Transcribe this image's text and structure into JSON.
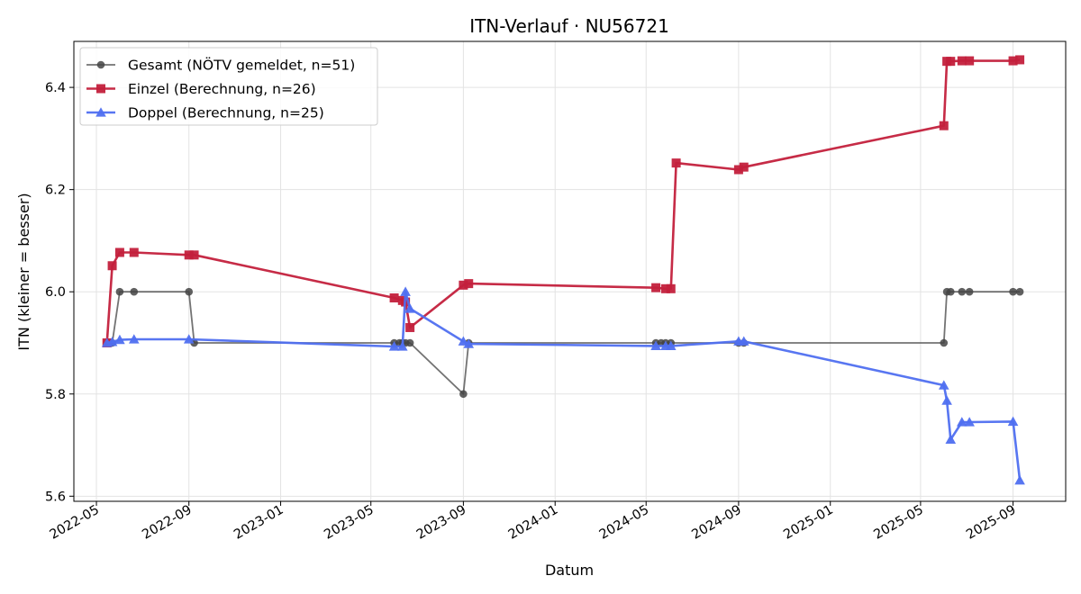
{
  "chart_data": {
    "type": "line",
    "title": "ITN-Verlauf · NU56721",
    "xlabel": "Datum",
    "ylabel": "ITN  (kleiner = besser)",
    "x_axis": "date",
    "xlim": [
      "2022-04-01",
      "2025-11-10"
    ],
    "ylim": [
      5.59,
      6.49
    ],
    "x_ticks": [
      "2022-05",
      "2022-09",
      "2023-01",
      "2023-05",
      "2023-09",
      "2024-01",
      "2024-05",
      "2024-09",
      "2025-01",
      "2025-05",
      "2025-09"
    ],
    "y_ticks": [
      "5.6",
      "5.8",
      "6.0",
      "6.2",
      "6.4"
    ],
    "grid": true,
    "legend_position": "top-left",
    "series": [
      {
        "name": "Gesamt (NÖTV gemeldet, n=51)",
        "color": "#444444",
        "marker": "circle",
        "points": [
          [
            "2022-05-15",
            5.9
          ],
          [
            "2022-05-22",
            5.9
          ],
          [
            "2022-06-01",
            6.0
          ],
          [
            "2022-06-20",
            6.0
          ],
          [
            "2022-09-01",
            6.0
          ],
          [
            "2022-09-08",
            5.9
          ],
          [
            "2023-06-01",
            5.9
          ],
          [
            "2023-06-08",
            5.9
          ],
          [
            "2023-06-12",
            5.9
          ],
          [
            "2023-06-16",
            5.9
          ],
          [
            "2023-06-22",
            5.9
          ],
          [
            "2023-09-01",
            5.8
          ],
          [
            "2023-09-08",
            5.9
          ],
          [
            "2024-05-14",
            5.9
          ],
          [
            "2024-05-21",
            5.9
          ],
          [
            "2024-05-27",
            5.9
          ],
          [
            "2024-06-03",
            5.9
          ],
          [
            "2024-09-01",
            5.9
          ],
          [
            "2024-09-08",
            5.9
          ],
          [
            "2025-06-01",
            5.9
          ],
          [
            "2025-06-05",
            6.0
          ],
          [
            "2025-06-10",
            6.0
          ],
          [
            "2025-06-25",
            6.0
          ],
          [
            "2025-07-05",
            6.0
          ],
          [
            "2025-09-01",
            6.0
          ],
          [
            "2025-09-10",
            6.0
          ]
        ]
      },
      {
        "name": "Einzel (Berechnung, n=26)",
        "color": "#c3203c",
        "marker": "square",
        "points": [
          [
            "2022-05-15",
            5.9
          ],
          [
            "2022-05-22",
            6.051
          ],
          [
            "2022-06-01",
            6.077
          ],
          [
            "2022-06-20",
            6.077
          ],
          [
            "2022-09-01",
            6.072
          ],
          [
            "2022-09-08",
            6.072
          ],
          [
            "2023-06-01",
            5.988
          ],
          [
            "2023-06-12",
            5.983
          ],
          [
            "2023-06-16",
            5.98
          ],
          [
            "2023-06-22",
            5.93
          ],
          [
            "2023-09-01",
            6.013
          ],
          [
            "2023-09-08",
            6.016
          ],
          [
            "2024-05-14",
            6.008
          ],
          [
            "2024-05-27",
            6.006
          ],
          [
            "2024-06-03",
            6.006
          ],
          [
            "2024-06-10",
            6.252
          ],
          [
            "2024-09-01",
            6.239
          ],
          [
            "2024-09-08",
            6.244
          ],
          [
            "2025-06-01",
            6.325
          ],
          [
            "2025-06-05",
            6.451
          ],
          [
            "2025-06-10",
            6.451
          ],
          [
            "2025-06-25",
            6.452
          ],
          [
            "2025-07-05",
            6.452
          ],
          [
            "2025-09-01",
            6.452
          ],
          [
            "2025-09-10",
            6.454
          ]
        ]
      },
      {
        "name": "Doppel (Berechnung, n=25)",
        "color": "#4f6ff0",
        "marker": "triangle",
        "points": [
          [
            "2022-05-15",
            5.9
          ],
          [
            "2022-05-22",
            5.902
          ],
          [
            "2022-06-01",
            5.906
          ],
          [
            "2022-06-20",
            5.907
          ],
          [
            "2022-09-01",
            5.907
          ],
          [
            "2023-06-01",
            5.893
          ],
          [
            "2023-06-12",
            5.893
          ],
          [
            "2023-06-16",
            6.0
          ],
          [
            "2023-06-22",
            5.967
          ],
          [
            "2023-09-01",
            5.903
          ],
          [
            "2023-09-08",
            5.898
          ],
          [
            "2024-05-14",
            5.894
          ],
          [
            "2024-05-27",
            5.894
          ],
          [
            "2024-06-03",
            5.894
          ],
          [
            "2024-09-01",
            5.903
          ],
          [
            "2024-09-08",
            5.903
          ],
          [
            "2025-06-01",
            5.817
          ],
          [
            "2025-06-05",
            5.787
          ],
          [
            "2025-06-10",
            5.711
          ],
          [
            "2025-06-25",
            5.745
          ],
          [
            "2025-07-05",
            5.745
          ],
          [
            "2025-09-01",
            5.746
          ],
          [
            "2025-09-10",
            5.631
          ]
        ]
      }
    ]
  }
}
